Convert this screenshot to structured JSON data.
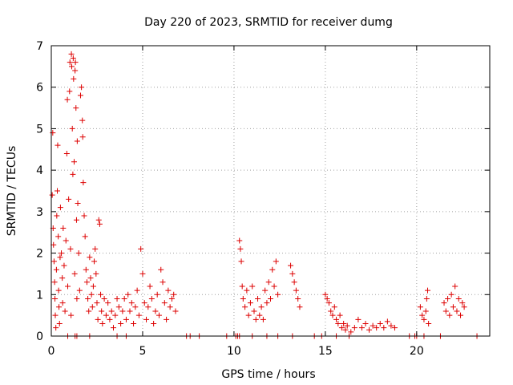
{
  "chart_data": {
    "type": "scatter",
    "title": "Day 220 of 2023, SRMTID for receiver dumg",
    "xlabel": "GPS time / hours",
    "ylabel": "SRMTID / TECUs",
    "xlim": [
      0,
      24
    ],
    "ylim": [
      0,
      7
    ],
    "xticks": [
      0,
      5,
      10,
      15,
      20
    ],
    "yticks": [
      0,
      1,
      2,
      3,
      4,
      5,
      6,
      7
    ],
    "x_tick_labels": [
      "0",
      "5",
      "10",
      "15",
      "20"
    ],
    "y_tick_labels": [
      "0",
      "1",
      "2",
      "3",
      "4",
      "5",
      "6",
      "7"
    ],
    "marker": "+",
    "color": "#dd0000",
    "grid": true,
    "series": [
      {
        "name": "SRMTID",
        "points": [
          [
            0.05,
            3.4
          ],
          [
            0.08,
            4.9
          ],
          [
            0.1,
            2.6
          ],
          [
            0.12,
            2.2
          ],
          [
            0.15,
            1.8
          ],
          [
            0.18,
            1.3
          ],
          [
            0.2,
            0.9
          ],
          [
            0.22,
            0.5
          ],
          [
            0.25,
            0.2
          ],
          [
            0.28,
            1.6
          ],
          [
            0.3,
            2.9
          ],
          [
            0.33,
            3.5
          ],
          [
            0.35,
            4.6
          ],
          [
            0.38,
            2.4
          ],
          [
            0.4,
            1.1
          ],
          [
            0.42,
            0.7
          ],
          [
            0.45,
            0.3
          ],
          [
            0.48,
            1.9
          ],
          [
            0.5,
            3.1
          ],
          [
            0.55,
            2.0
          ],
          [
            0.6,
            1.4
          ],
          [
            0.62,
            0.8
          ],
          [
            0.65,
            2.6
          ],
          [
            0.7,
            1.7
          ],
          [
            0.75,
            0.6
          ],
          [
            0.8,
            2.3
          ],
          [
            0.85,
            4.4
          ],
          [
            0.88,
            5.7
          ],
          [
            0.9,
            1.2
          ],
          [
            0.95,
            3.3
          ],
          [
            1.0,
            5.9
          ],
          [
            1.02,
            6.6
          ],
          [
            1.05,
            2.1
          ],
          [
            1.08,
            0.5
          ],
          [
            1.1,
            6.8
          ],
          [
            1.12,
            6.5
          ],
          [
            1.15,
            5.0
          ],
          [
            1.18,
            3.9
          ],
          [
            1.2,
            6.7
          ],
          [
            1.22,
            6.2
          ],
          [
            1.25,
            4.2
          ],
          [
            1.28,
            1.5
          ],
          [
            1.3,
            6.4
          ],
          [
            1.32,
            6.6
          ],
          [
            1.35,
            5.5
          ],
          [
            1.38,
            2.8
          ],
          [
            1.4,
            0.9
          ],
          [
            1.42,
            4.7
          ],
          [
            1.45,
            3.2
          ],
          [
            1.5,
            2.0
          ],
          [
            1.55,
            1.1
          ],
          [
            1.6,
            5.8
          ],
          [
            1.65,
            6.0
          ],
          [
            1.7,
            5.2
          ],
          [
            1.72,
            4.8
          ],
          [
            1.75,
            3.7
          ],
          [
            1.8,
            2.9
          ],
          [
            1.85,
            2.4
          ],
          [
            1.9,
            1.6
          ],
          [
            1.95,
            1.3
          ],
          [
            2.0,
            0.9
          ],
          [
            2.05,
            0.6
          ],
          [
            2.1,
            1.9
          ],
          [
            2.15,
            1.4
          ],
          [
            2.2,
            1.0
          ],
          [
            2.25,
            0.7
          ],
          [
            2.3,
            1.2
          ],
          [
            2.35,
            1.8
          ],
          [
            2.4,
            2.1
          ],
          [
            2.45,
            1.5
          ],
          [
            2.5,
            0.8
          ],
          [
            2.55,
            0.4
          ],
          [
            2.6,
            2.8
          ],
          [
            2.65,
            2.7
          ],
          [
            2.7,
            1.0
          ],
          [
            2.75,
            0.6
          ],
          [
            2.8,
            0.3
          ],
          [
            2.9,
            0.9
          ],
          [
            3.0,
            0.5
          ],
          [
            3.1,
            0.8
          ],
          [
            3.2,
            0.4
          ],
          [
            3.3,
            0.6
          ],
          [
            3.4,
            0.2
          ],
          [
            3.5,
            0.5
          ],
          [
            3.6,
            0.9
          ],
          [
            3.7,
            0.7
          ],
          [
            3.8,
            0.3
          ],
          [
            3.9,
            0.6
          ],
          [
            4.0,
            0.9
          ],
          [
            4.1,
            0.4
          ],
          [
            4.2,
            1.0
          ],
          [
            4.3,
            0.6
          ],
          [
            4.4,
            0.8
          ],
          [
            4.5,
            0.3
          ],
          [
            4.6,
            0.7
          ],
          [
            4.7,
            1.1
          ],
          [
            4.8,
            0.5
          ],
          [
            4.9,
            2.1
          ],
          [
            5.0,
            1.5
          ],
          [
            5.1,
            0.8
          ],
          [
            5.2,
            0.4
          ],
          [
            5.3,
            0.7
          ],
          [
            5.4,
            1.2
          ],
          [
            5.5,
            0.9
          ],
          [
            5.6,
            0.3
          ],
          [
            5.7,
            0.6
          ],
          [
            5.8,
            1.0
          ],
          [
            5.9,
            0.5
          ],
          [
            6.0,
            1.6
          ],
          [
            6.1,
            1.3
          ],
          [
            6.2,
            0.8
          ],
          [
            6.3,
            0.4
          ],
          [
            6.4,
            1.1
          ],
          [
            6.5,
            0.7
          ],
          [
            6.6,
            0.9
          ],
          [
            6.7,
            1.0
          ],
          [
            6.8,
            0.6
          ],
          [
            10.3,
            2.3
          ],
          [
            10.35,
            2.1
          ],
          [
            10.4,
            1.8
          ],
          [
            10.45,
            1.2
          ],
          [
            10.5,
            0.9
          ],
          [
            10.6,
            0.7
          ],
          [
            10.7,
            1.1
          ],
          [
            10.8,
            0.5
          ],
          [
            10.9,
            0.8
          ],
          [
            11.0,
            1.2
          ],
          [
            11.1,
            0.6
          ],
          [
            11.2,
            0.4
          ],
          [
            11.3,
            0.9
          ],
          [
            11.4,
            0.5
          ],
          [
            11.5,
            0.7
          ],
          [
            11.6,
            0.4
          ],
          [
            11.7,
            1.1
          ],
          [
            11.8,
            0.8
          ],
          [
            11.9,
            1.3
          ],
          [
            12.0,
            0.9
          ],
          [
            12.1,
            1.6
          ],
          [
            12.2,
            1.2
          ],
          [
            12.3,
            1.8
          ],
          [
            12.4,
            1.0
          ],
          [
            13.1,
            1.7
          ],
          [
            13.2,
            1.5
          ],
          [
            13.3,
            1.3
          ],
          [
            13.4,
            1.1
          ],
          [
            13.5,
            0.9
          ],
          [
            13.6,
            0.7
          ],
          [
            15.0,
            1.0
          ],
          [
            15.1,
            0.9
          ],
          [
            15.2,
            0.8
          ],
          [
            15.3,
            0.6
          ],
          [
            15.4,
            0.5
          ],
          [
            15.5,
            0.7
          ],
          [
            15.6,
            0.4
          ],
          [
            15.7,
            0.3
          ],
          [
            15.8,
            0.5
          ],
          [
            15.9,
            0.2
          ],
          [
            16.0,
            0.3
          ],
          [
            16.1,
            0.15
          ],
          [
            16.2,
            0.25
          ],
          [
            16.4,
            0.1
          ],
          [
            16.6,
            0.2
          ],
          [
            16.8,
            0.4
          ],
          [
            17.0,
            0.2
          ],
          [
            17.2,
            0.3
          ],
          [
            17.4,
            0.15
          ],
          [
            17.6,
            0.25
          ],
          [
            17.8,
            0.2
          ],
          [
            18.0,
            0.3
          ],
          [
            18.2,
            0.2
          ],
          [
            18.4,
            0.35
          ],
          [
            18.6,
            0.25
          ],
          [
            18.8,
            0.2
          ],
          [
            20.2,
            0.7
          ],
          [
            20.3,
            0.5
          ],
          [
            20.4,
            0.4
          ],
          [
            20.5,
            0.6
          ],
          [
            20.55,
            0.9
          ],
          [
            20.6,
            1.1
          ],
          [
            20.65,
            0.3
          ],
          [
            21.5,
            0.8
          ],
          [
            21.6,
            0.6
          ],
          [
            21.7,
            0.9
          ],
          [
            21.8,
            0.5
          ],
          [
            21.9,
            1.0
          ],
          [
            22.0,
            0.7
          ],
          [
            22.1,
            1.2
          ],
          [
            22.2,
            0.6
          ],
          [
            22.3,
            0.9
          ],
          [
            22.4,
            0.5
          ],
          [
            22.5,
            0.8
          ],
          [
            22.6,
            0.7
          ],
          [
            0.9,
            0.0
          ],
          [
            1.3,
            0.0
          ],
          [
            1.4,
            0.0
          ],
          [
            2.1,
            0.0
          ],
          [
            3.6,
            0.0
          ],
          [
            4.1,
            0.0
          ],
          [
            7.4,
            0.0
          ],
          [
            7.6,
            0.0
          ],
          [
            8.1,
            0.0
          ],
          [
            9.6,
            0.0
          ],
          [
            10.1,
            0.0
          ],
          [
            10.2,
            0.0
          ],
          [
            10.3,
            0.0
          ],
          [
            11.0,
            0.0
          ],
          [
            11.8,
            0.0
          ],
          [
            12.4,
            0.0
          ],
          [
            13.2,
            0.0
          ],
          [
            14.4,
            0.0
          ],
          [
            14.8,
            0.0
          ],
          [
            15.6,
            0.0
          ],
          [
            16.3,
            0.0
          ],
          [
            19.6,
            0.0
          ],
          [
            19.9,
            0.0
          ],
          [
            20.0,
            0.0
          ],
          [
            20.4,
            0.0
          ],
          [
            21.3,
            0.0
          ],
          [
            23.3,
            0.0
          ]
        ]
      }
    ]
  }
}
